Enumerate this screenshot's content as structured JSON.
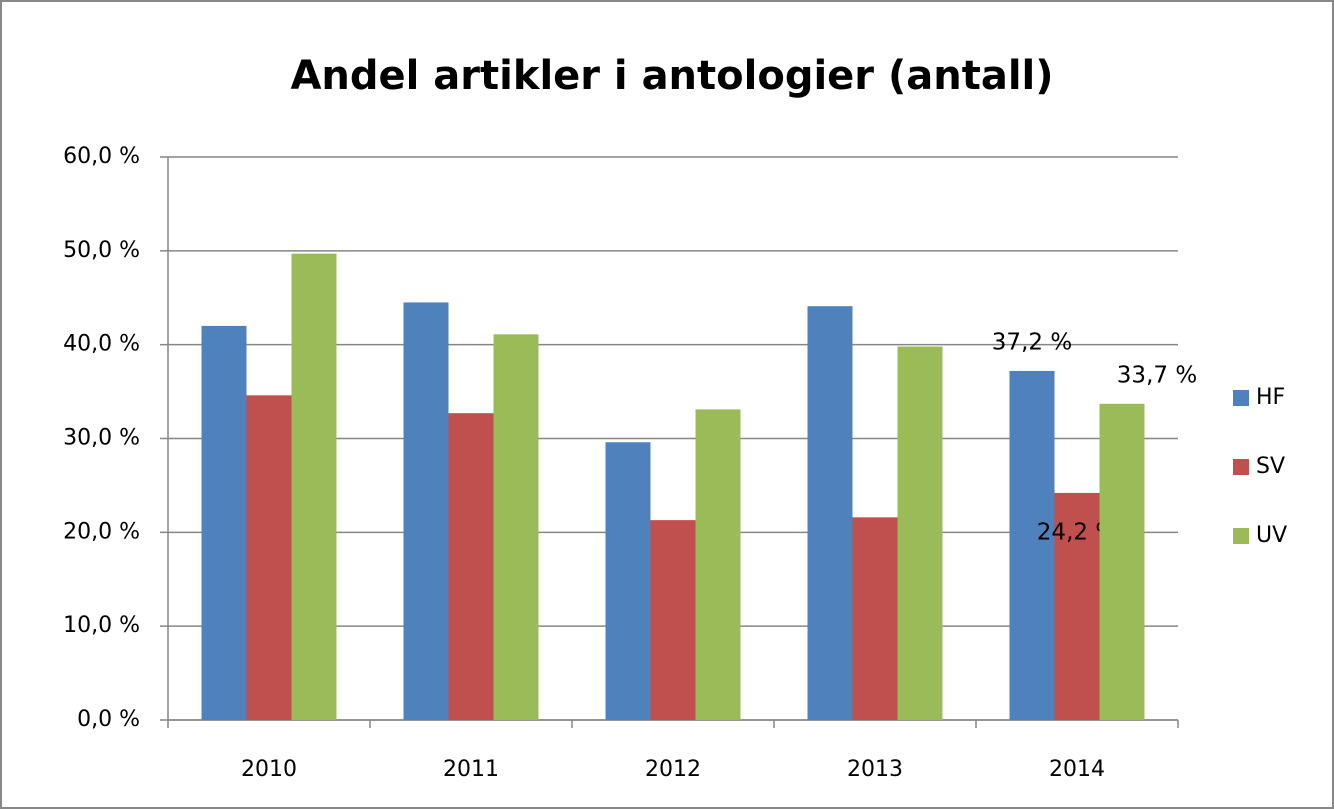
{
  "chart_data": {
    "type": "bar",
    "title": "Andel artikler i antologier (antall)",
    "categories": [
      "2010",
      "2011",
      "2012",
      "2013",
      "2014"
    ],
    "series": [
      {
        "name": "HF",
        "color": "#4f81bd",
        "values": [
          42.0,
          44.5,
          29.6,
          44.1,
          37.2
        ],
        "value_labels": [
          null,
          null,
          null,
          null,
          "37,2 %"
        ]
      },
      {
        "name": "SV",
        "color": "#c0504d",
        "values": [
          34.6,
          32.7,
          21.3,
          21.6,
          24.2
        ],
        "value_labels": [
          null,
          null,
          null,
          null,
          "24,2 %"
        ]
      },
      {
        "name": "UV",
        "color": "#9bbb59",
        "values": [
          49.7,
          41.1,
          33.1,
          39.8,
          33.7
        ],
        "value_labels": [
          null,
          null,
          null,
          null,
          "33,7 %"
        ]
      }
    ],
    "ylim": [
      0,
      60
    ],
    "yticks": [
      {
        "value": 0,
        "label": "0,0 %"
      },
      {
        "value": 10,
        "label": "10,0 %"
      },
      {
        "value": 20,
        "label": "20,0 %"
      },
      {
        "value": 30,
        "label": "30,0 %"
      },
      {
        "value": 40,
        "label": "40,0 %"
      },
      {
        "value": 50,
        "label": "50,0 %"
      },
      {
        "value": 60,
        "label": "60,0 %"
      }
    ],
    "grid": true,
    "legend": "right"
  }
}
